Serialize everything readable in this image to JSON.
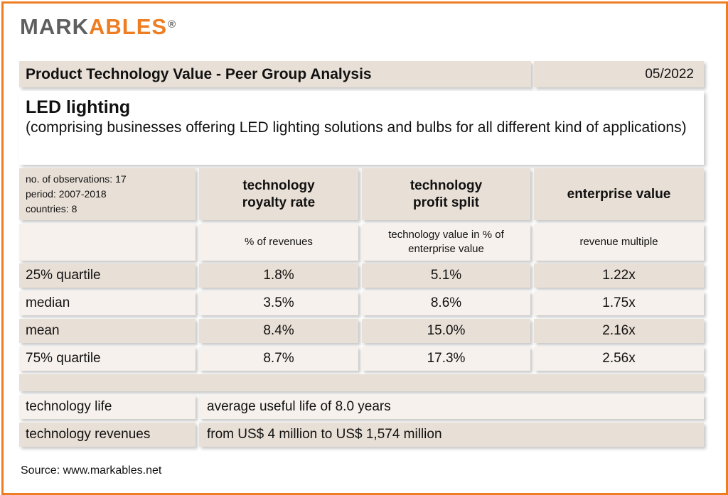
{
  "brand": {
    "part1": "MARK",
    "part2": "ABLES",
    "reg": "®"
  },
  "header": {
    "title": "Product Technology Value - Peer Group Analysis",
    "date": "05/2022"
  },
  "sector": {
    "title": "LED lighting",
    "description": "(comprising businesses offering LED lighting solutions and bulbs for all different kind of applications)"
  },
  "meta": {
    "observations": "no. of observations: 17",
    "period": "period: 2007-2018",
    "countries": "countries: 8"
  },
  "columns": [
    {
      "line1": "technology",
      "line2": "royalty rate",
      "unit": "% of revenues"
    },
    {
      "line1": "technology",
      "line2": "profit split",
      "unit": "technology value in % of enterprise value"
    },
    {
      "line1": "enterprise value",
      "line2": "",
      "unit": "revenue multiple"
    }
  ],
  "rows": [
    {
      "label": "25% quartile",
      "values": [
        "1.8%",
        "5.1%",
        "1.22x"
      ]
    },
    {
      "label": "median",
      "values": [
        "3.5%",
        "8.6%",
        "1.75x"
      ]
    },
    {
      "label": "mean",
      "values": [
        "8.4%",
        "15.0%",
        "2.16x"
      ]
    },
    {
      "label": "75% quartile",
      "values": [
        "8.7%",
        "17.3%",
        "2.56x"
      ]
    }
  ],
  "facts": [
    {
      "label": "technology life",
      "value": "average useful life of 8.0 years"
    },
    {
      "label": "technology revenues",
      "value": "from US$ 4 million to US$ 1,574 million"
    }
  ],
  "source": "Source: www.markables.net"
}
